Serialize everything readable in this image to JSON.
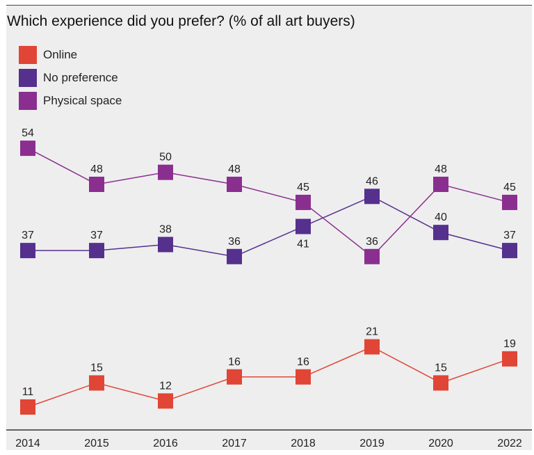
{
  "chart_data": {
    "type": "line",
    "title": "Which experience did you prefer? (% of all art buyers)",
    "categories": [
      "2014",
      "2015",
      "2016",
      "2017",
      "2018",
      "2019",
      "2020",
      "2022"
    ],
    "ylim": [
      7,
      62
    ],
    "grid": false,
    "legend_placement": "top-left",
    "series": [
      {
        "name": "Online",
        "color": "#e04535",
        "values": [
          11,
          15,
          12,
          16,
          16,
          21,
          15,
          19
        ]
      },
      {
        "name": "No preference",
        "color": "#55308d",
        "values": [
          37,
          37,
          38,
          36,
          41,
          46,
          40,
          37
        ]
      },
      {
        "name": "Physical space",
        "color": "#8a2f8f",
        "values": [
          54,
          48,
          50,
          48,
          45,
          36,
          48,
          45
        ]
      }
    ]
  }
}
